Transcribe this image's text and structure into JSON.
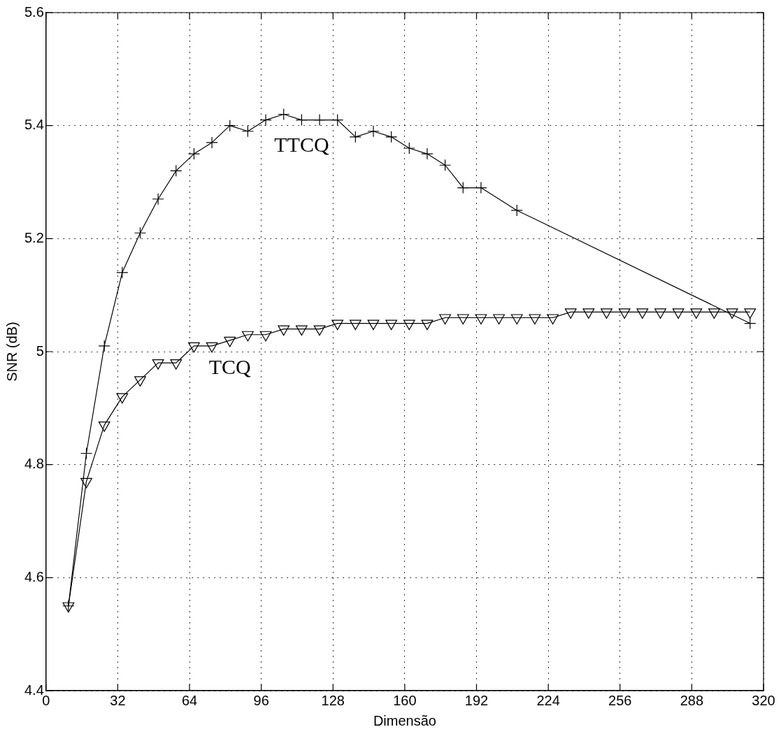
{
  "chart_data": {
    "type": "line",
    "xlabel": "Dimensão",
    "ylabel": "SNR (dB)",
    "xlim": [
      0,
      320
    ],
    "xticks": [
      0,
      32,
      64,
      96,
      128,
      160,
      192,
      224,
      256,
      288,
      320
    ],
    "ylim": [
      4.4,
      5.6
    ],
    "yticks": [
      4.4,
      4.6,
      4.8,
      5,
      5.2,
      5.4,
      5.6
    ],
    "grid": true,
    "line_style": "solid",
    "series": [
      {
        "name": "TTCQ",
        "color": "#000000",
        "marker": "cross",
        "x": [
          10,
          18,
          26,
          34,
          42,
          50,
          58,
          66,
          74,
          82,
          90,
          98,
          106,
          114,
          122,
          130,
          138,
          146,
          154,
          162,
          170,
          178,
          186,
          194,
          210,
          314
        ],
        "values": [
          4.55,
          4.82,
          5.01,
          5.14,
          5.21,
          5.27,
          5.32,
          5.35,
          5.37,
          5.4,
          5.39,
          5.41,
          5.42,
          5.41,
          5.41,
          5.41,
          5.38,
          5.39,
          5.38,
          5.36,
          5.35,
          5.33,
          5.29,
          5.29,
          5.25,
          5.05
        ]
      },
      {
        "name": "TCQ",
        "color": "#000000",
        "marker": "triangle",
        "x": [
          10,
          18,
          26,
          34,
          42,
          50,
          58,
          66,
          74,
          82,
          90,
          98,
          106,
          114,
          122,
          130,
          138,
          146,
          154,
          162,
          170,
          178,
          186,
          194,
          202,
          210,
          218,
          226,
          234,
          242,
          250,
          258,
          266,
          274,
          282,
          290,
          298,
          306,
          314
        ],
        "values": [
          4.55,
          4.77,
          4.87,
          4.92,
          4.95,
          4.98,
          4.98,
          5.01,
          5.01,
          5.02,
          5.03,
          5.03,
          5.04,
          5.04,
          5.04,
          5.05,
          5.05,
          5.05,
          5.05,
          5.05,
          5.05,
          5.06,
          5.06,
          5.06,
          5.06,
          5.06,
          5.06,
          5.06,
          5.07,
          5.07,
          5.07,
          5.07,
          5.07,
          5.07,
          5.07,
          5.07,
          5.07,
          5.07,
          5.07
        ]
      }
    ]
  }
}
